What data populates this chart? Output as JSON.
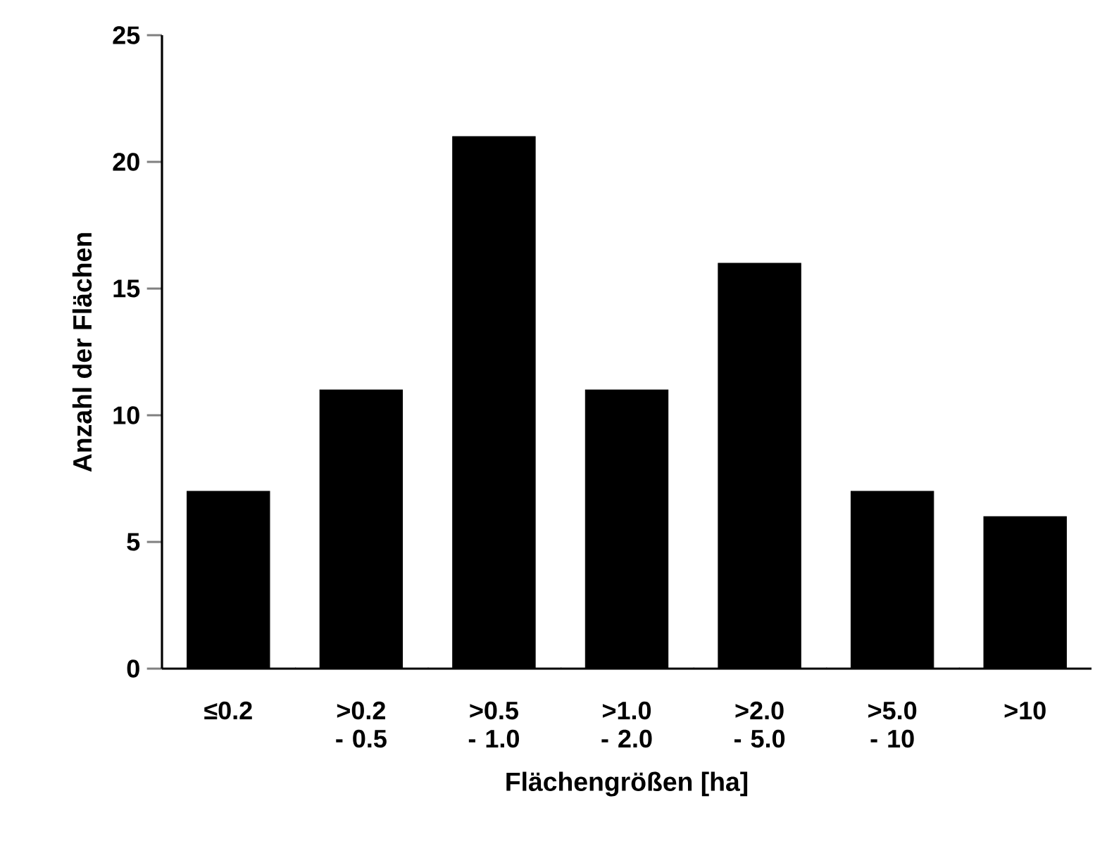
{
  "chart_data": {
    "type": "bar",
    "xlabel": "Flächengrößen [ha]",
    "ylabel": "Anzahl der Flächen",
    "categories": [
      "≤0.2",
      ">0.2 - 0.5",
      ">0.5 - 1.0",
      ">1.0 - 2.0",
      ">2.0 - 5.0",
      ">5.0 - 10",
      ">10"
    ],
    "values": [
      7,
      11,
      21,
      11,
      16,
      7,
      6
    ],
    "color": "#000000",
    "ylim": [
      0,
      25
    ],
    "yticks": [
      0,
      5,
      10,
      15,
      20,
      25
    ],
    "grid": false
  }
}
